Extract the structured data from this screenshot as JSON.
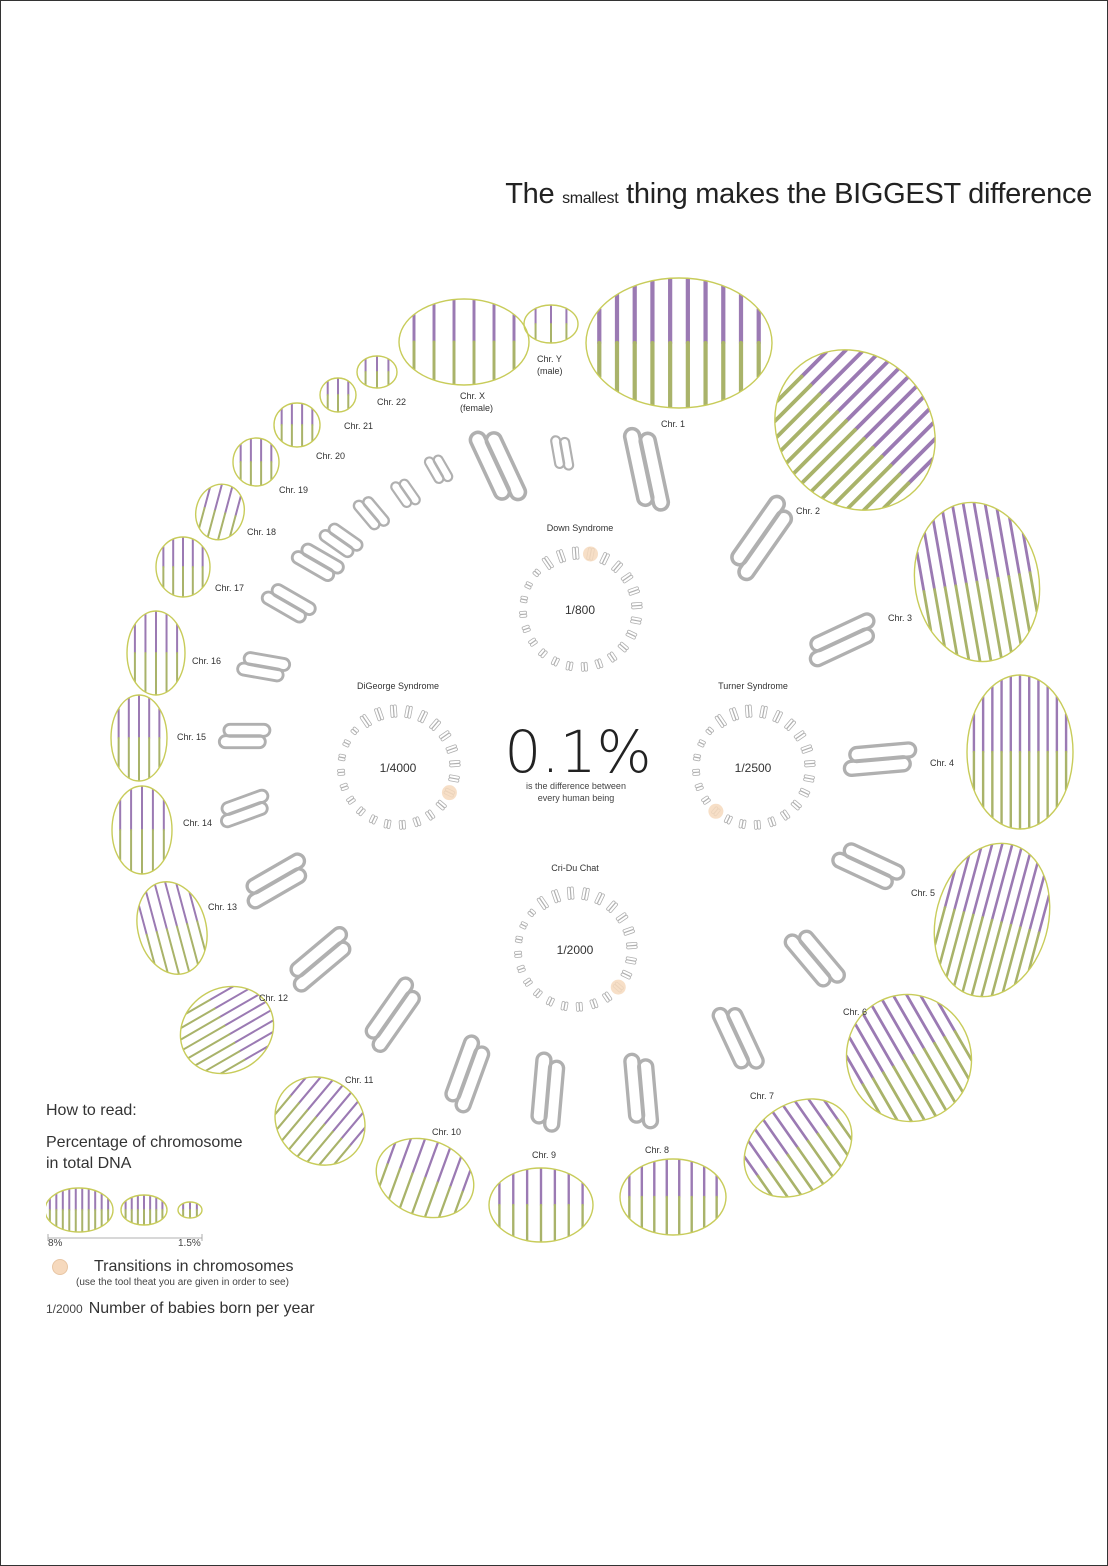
{
  "title": {
    "part1": "The",
    "small": "smallest",
    "part2": "thing makes the BIGGEST difference"
  },
  "center": {
    "value": "0.1%",
    "caption_line1": "is the difference between",
    "caption_line2": "every human being"
  },
  "colors": {
    "outline": "#c8cc5a",
    "stripe_purple": "#9b7ab3",
    "stripe_green": "#a9b36a",
    "pill": "#b0b0b0",
    "highlight": "#f6d9bd",
    "text": "#333333"
  },
  "chromosomes": [
    {
      "label": "Chr. 1"
    },
    {
      "label": "Chr. 2"
    },
    {
      "label": "Chr. 3"
    },
    {
      "label": "Chr. 4"
    },
    {
      "label": "Chr. 5"
    },
    {
      "label": "Chr. 6"
    },
    {
      "label": "Chr. 7"
    },
    {
      "label": "Chr. 8"
    },
    {
      "label": "Chr. 9"
    },
    {
      "label": "Chr. 10"
    },
    {
      "label": "Chr. 11"
    },
    {
      "label": "Chr. 12"
    },
    {
      "label": "Chr. 13"
    },
    {
      "label": "Chr. 14"
    },
    {
      "label": "Chr. 15"
    },
    {
      "label": "Chr. 16"
    },
    {
      "label": "Chr. 17"
    },
    {
      "label": "Chr. 18"
    },
    {
      "label": "Chr. 19"
    },
    {
      "label": "Chr. 20"
    },
    {
      "label": "Chr. 21"
    },
    {
      "label": "Chr. 22"
    },
    {
      "label": "Chr. X",
      "label2": "(female)"
    },
    {
      "label": "Chr. Y",
      "label2": "(male)"
    }
  ],
  "syndromes": [
    {
      "name": "Down Syndrome",
      "ratio": "1/800",
      "highlight_chromosome": 21
    },
    {
      "name": "DiGeorge Syndrome",
      "ratio": "1/4000",
      "highlight_chromosome": 22
    },
    {
      "name": "Turner Syndrome",
      "ratio": "1/2500",
      "highlight_chromosome": 23
    },
    {
      "name": "Cri-Du Chat",
      "ratio": "1/2000",
      "highlight_chromosome": 5
    }
  ],
  "legend": {
    "heading": "How to read:",
    "size_title": "Percentage of chromosome in total DNA",
    "scale_max": "8%",
    "scale_min": "1.5%",
    "transitions_title": "Transitions in chromosomes",
    "transitions_note": "(use the tool theat you are given in order to see)",
    "ratio_example": "1/2000",
    "ratio_text": "Number of babies born per year"
  }
}
